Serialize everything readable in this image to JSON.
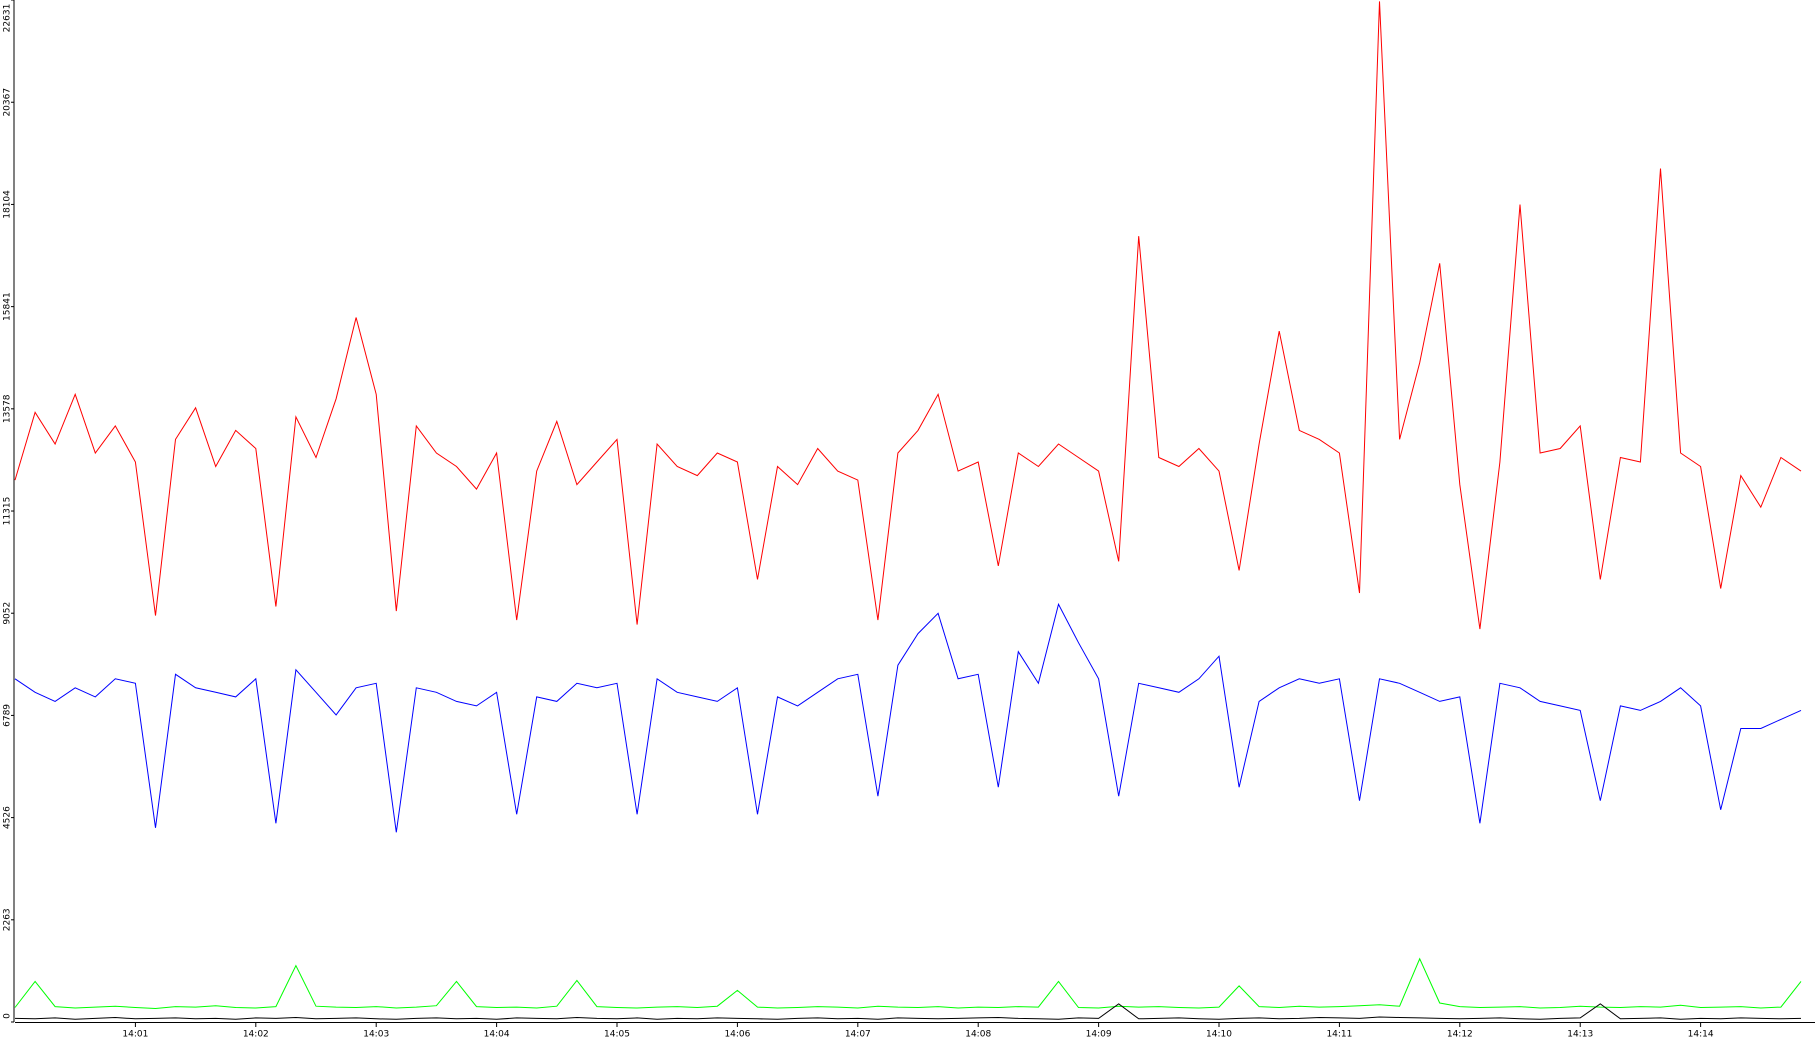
{
  "chart_data": {
    "type": "line",
    "x": [
      0,
      10,
      20,
      30,
      40,
      50,
      60,
      70,
      80,
      90,
      100,
      110,
      120,
      130,
      140,
      150,
      160,
      170,
      180,
      190,
      200,
      210,
      220,
      230,
      240,
      250,
      260,
      270,
      280,
      290,
      300,
      310,
      320,
      330,
      340,
      350,
      360,
      370,
      380,
      390,
      400,
      410,
      420,
      430,
      440,
      450,
      460,
      470,
      480,
      490,
      500,
      510,
      520,
      530,
      540,
      550,
      560,
      570,
      580,
      590,
      600,
      610,
      620,
      630,
      640,
      650,
      660,
      670,
      680,
      690,
      700,
      710,
      720,
      730,
      740,
      750,
      760,
      770,
      780,
      790,
      800,
      810,
      820,
      830,
      840,
      850,
      860,
      870,
      880,
      890
    ],
    "series": [
      {
        "color": "#ff0000",
        "values": [
          12000,
          13500,
          12800,
          13900,
          12600,
          13200,
          12400,
          9000,
          12900,
          13600,
          12300,
          13100,
          12700,
          9200,
          13400,
          12500,
          13800,
          15600,
          13900,
          9100,
          13200,
          12600,
          12300,
          11800,
          12600,
          8900,
          12200,
          13300,
          11900,
          12400,
          12900,
          8800,
          12800,
          12300,
          12100,
          12600,
          12400,
          9800,
          12300,
          11900,
          12700,
          12200,
          12000,
          8900,
          12600,
          13100,
          13900,
          12200,
          12400,
          10100,
          12600,
          12300,
          12800,
          12500,
          12200,
          10200,
          17400,
          12500,
          12300,
          12700,
          12200,
          10000,
          12800,
          15300,
          13100,
          12900,
          12600,
          9500,
          22600,
          12900,
          14600,
          16800,
          11900,
          8700,
          12400,
          18100,
          12600,
          12700,
          13200,
          9800,
          12500,
          12400,
          18900,
          12600,
          12300,
          9600,
          12100,
          11400,
          12500,
          12200
        ]
      },
      {
        "color": "#0000ff",
        "values": [
          7600,
          7300,
          7100,
          7400,
          7200,
          7600,
          7500,
          4300,
          7700,
          7400,
          7300,
          7200,
          7600,
          4400,
          7800,
          7300,
          6800,
          7400,
          7500,
          4200,
          7400,
          7300,
          7100,
          7000,
          7300,
          4600,
          7200,
          7100,
          7500,
          7400,
          7500,
          4600,
          7600,
          7300,
          7200,
          7100,
          7400,
          4600,
          7200,
          7000,
          7300,
          7600,
          7700,
          5000,
          7900,
          8600,
          9050,
          7600,
          7700,
          5200,
          8200,
          7500,
          9250,
          8400,
          7600,
          5000,
          7500,
          7400,
          7300,
          7600,
          8100,
          5200,
          7100,
          7400,
          7600,
          7500,
          7600,
          4900,
          7600,
          7500,
          7300,
          7100,
          7200,
          4400,
          7500,
          7400,
          7100,
          7000,
          6900,
          4900,
          7000,
          6900,
          7100,
          7400,
          7000,
          4700,
          6500,
          6500,
          6700,
          6900
        ]
      },
      {
        "color": "#00ff00",
        "values": [
          320,
          900,
          340,
          310,
          330,
          350,
          320,
          300,
          340,
          330,
          360,
          320,
          310,
          340,
          1250,
          350,
          330,
          320,
          340,
          310,
          330,
          360,
          900,
          340,
          320,
          330,
          310,
          350,
          920,
          340,
          320,
          310,
          330,
          340,
          320,
          350,
          700,
          330,
          310,
          320,
          340,
          330,
          310,
          350,
          330,
          320,
          340,
          310,
          330,
          320,
          340,
          330,
          900,
          320,
          310,
          350,
          330,
          340,
          320,
          310,
          330,
          800,
          340,
          320,
          350,
          330,
          340,
          360,
          380,
          350,
          1400,
          420,
          340,
          320,
          330,
          340,
          310,
          320,
          350,
          330,
          320,
          340,
          330,
          370,
          320,
          330,
          340,
          310,
          330,
          900
        ]
      },
      {
        "color": "#000000",
        "values": [
          80,
          70,
          90,
          60,
          80,
          100,
          70,
          80,
          90,
          70,
          80,
          60,
          90,
          80,
          100,
          70,
          80,
          90,
          70,
          60,
          80,
          90,
          70,
          80,
          60,
          90,
          80,
          70,
          100,
          80,
          70,
          90,
          60,
          80,
          70,
          90,
          80,
          70,
          60,
          80,
          90,
          70,
          80,
          60,
          90,
          80,
          70,
          80,
          90,
          100,
          80,
          70,
          60,
          90,
          80,
          400,
          70,
          80,
          90,
          70,
          60,
          80,
          90,
          70,
          80,
          100,
          90,
          80,
          110,
          100,
          90,
          80,
          70,
          80,
          90,
          70,
          60,
          80,
          90,
          400,
          70,
          80,
          90,
          60,
          80,
          70,
          90,
          80,
          70,
          80
        ]
      }
    ],
    "xlim": [
      0,
      897
    ],
    "xticks": [
      {
        "value": 60,
        "label": "14:01"
      },
      {
        "value": 120,
        "label": "14:02"
      },
      {
        "value": 180,
        "label": "14:03"
      },
      {
        "value": 240,
        "label": "14:04"
      },
      {
        "value": 300,
        "label": "14:05"
      },
      {
        "value": 360,
        "label": "14:06"
      },
      {
        "value": 420,
        "label": "14:07"
      },
      {
        "value": 480,
        "label": "14:08"
      },
      {
        "value": 540,
        "label": "14:09"
      },
      {
        "value": 600,
        "label": "14:10"
      },
      {
        "value": 660,
        "label": "14:11"
      },
      {
        "value": 720,
        "label": "14:12"
      },
      {
        "value": 780,
        "label": "14:13"
      },
      {
        "value": 840,
        "label": "14:14"
      }
    ],
    "ylim": [
      0,
      22631
    ],
    "yticks": [
      0,
      2263,
      4526,
      6789,
      9052,
      11315,
      13578,
      15841,
      18104,
      20367,
      22631
    ]
  }
}
